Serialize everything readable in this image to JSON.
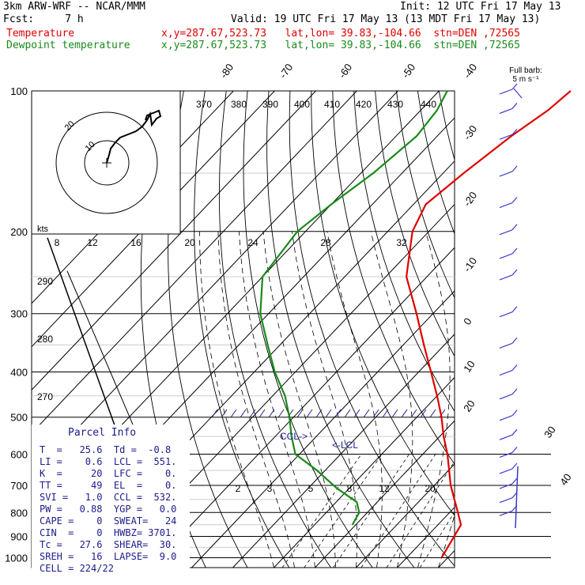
{
  "header": {
    "model": "3km ARW-WRF -- NCAR/MMM",
    "init": "Init: 12 UTC Fri 17 May 13",
    "fcst": "Fcst:     7 h",
    "valid": "Valid: 19 UTC Fri 17 May 13 (13 MDT Fri 17 May 13)",
    "temp_label": "Temperature",
    "temp_loc": "x,y=287.67,523.73   lat,lon= 39.83,-104.66  stn=DEN ,72565",
    "dew_label": "Dewpoint temperature",
    "dew_loc": "x,y=287.67,523.73   lat,lon= 39.83,-104.66  stn=DEN ,72565"
  },
  "barb_label": {
    "line1": "Full barb:",
    "line2": "5 m s⁻¹"
  },
  "hodograph": {
    "rings": [
      "10",
      "20"
    ],
    "unit": "kts"
  },
  "parcel_info": {
    "title": "Parcel Info",
    "rows": [
      "T  =   25.6  Td =  -0.8",
      "LI =    0.6  LCL =  551.",
      "K  =     20  LFC =    0.",
      "TT =     49  EL  =    0.",
      "SVI =   1.0  CCL =  532.",
      "PW =   0.88  YGP =   0.0",
      "CAPE =    0  SWEAT=   24",
      "CIN  =    0  HWBZ= 3701.",
      "Tc =   27.6  SHEAR=  30.",
      "SREH =   16  LAPSE=  9.0",
      "CELL = 224/22"
    ]
  },
  "labels": {
    "ccl": "CCL->",
    "lcl": "<-LCL"
  },
  "colors": {
    "temperature": "#e00000",
    "dewpoint": "#1a8a1a",
    "grid": "#000000",
    "annot": "#1c1c8c",
    "barb": "#3a3acc"
  },
  "chart_data": {
    "type": "line",
    "diagram": "skew-T log-p",
    "y_axis_ticks": [
      "100",
      "200",
      "300",
      "400",
      "500",
      "600",
      "700",
      "800",
      "900",
      "1000"
    ],
    "isotherm_labels": [
      "-80",
      "-70",
      "-60",
      "-50",
      "-40",
      "-30",
      "-20",
      "-10",
      "0",
      "10",
      "20",
      "30",
      "40"
    ],
    "theta_labels": [
      "370",
      "380",
      "390",
      "400",
      "410",
      "420",
      "430",
      "440"
    ],
    "theta_lower_labels": [
      "290",
      "280",
      "270"
    ],
    "mixing_ratio_labels": [
      "2",
      "3",
      "5",
      "8",
      "12",
      "20"
    ],
    "hodo_speed_labels": [
      "8",
      "12",
      "16",
      "20",
      "24",
      "28",
      "32"
    ],
    "series": [
      {
        "name": "Temperature",
        "p": [
          1000,
          850,
          800,
          700,
          600,
          550,
          500,
          450,
          400,
          350,
          300,
          250,
          200,
          175,
          150,
          125,
          110,
          100
        ],
        "t": [
          28.5,
          25.6,
          22,
          14,
          6,
          1,
          -4,
          -10,
          -17,
          -25,
          -34,
          -45,
          -54,
          -57,
          -55,
          -52,
          -49,
          -48
        ]
      },
      {
        "name": "Dewpoint temperature",
        "p": [
          850,
          800,
          760,
          710,
          650,
          600,
          550,
          500,
          450,
          400,
          350,
          300,
          250,
          200,
          175,
          150,
          125,
          110,
          100
        ],
        "t": [
          -0.8,
          -2,
          -5,
          -13,
          -22,
          -31,
          -36,
          -41,
          -47,
          -55,
          -63,
          -72,
          -80,
          -82,
          -80,
          -77,
          -75,
          -76,
          -78
        ]
      }
    ],
    "wind_barbs_p": [
      100,
      110,
      125,
      150,
      175,
      200,
      225,
      250,
      300,
      350,
      400,
      450,
      500,
      550,
      600,
      650,
      700,
      750,
      800
    ]
  }
}
